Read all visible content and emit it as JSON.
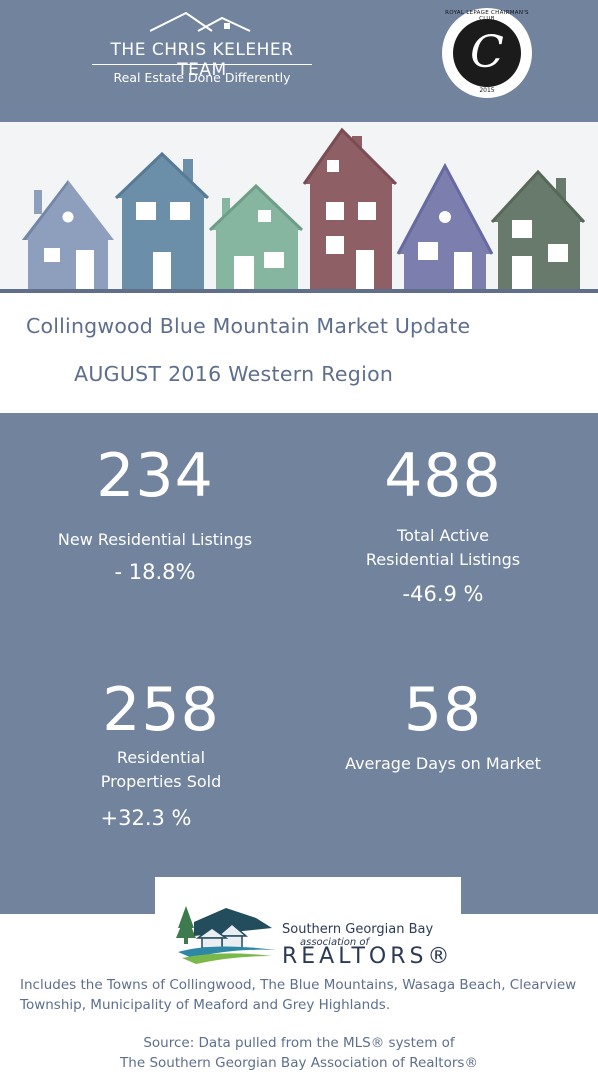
{
  "header": {
    "brand_name": "THE CHRIS KELEHER TEAM",
    "tagline": "Real Estate Done Differently",
    "seal_text": "ROYAL LEPAGE CHAIRMAN'S CLUB",
    "seal_year": "2015"
  },
  "title": {
    "line1": "Collingwood Blue Mountain Market Update",
    "line2": "AUGUST 2016 Western Region"
  },
  "house_colors": [
    "#8e9fbe",
    "#6b8fa9",
    "#86b6a0",
    "#8f5f66",
    "#7c7eae",
    "#687a6b"
  ],
  "stats": [
    {
      "value": "234",
      "label": "New Residential Listings",
      "change": "- 18.8%"
    },
    {
      "value": "488",
      "label_lines": [
        "Total Active",
        "Residential Listings"
      ],
      "change": "-46.9 %"
    },
    {
      "value": "258",
      "label_lines": [
        "Residential",
        "Properties Sold"
      ],
      "change": "+32.3 %"
    },
    {
      "value": "58",
      "label": "Average Days on Market"
    }
  ],
  "association": {
    "line1": "Southern Georgian Bay",
    "line2": "association of",
    "line3": "REALTORS®"
  },
  "footer": {
    "includes": "Includes the Towns of Collingwood, The Blue Mountains, Wasaga Beach, Clearview Township, Municipality of Meaford and Grey Highlands.",
    "source_line1": "Source: Data pulled from the MLS® system of",
    "source_line2": "The Southern Georgian Bay Association of Realtors®"
  }
}
